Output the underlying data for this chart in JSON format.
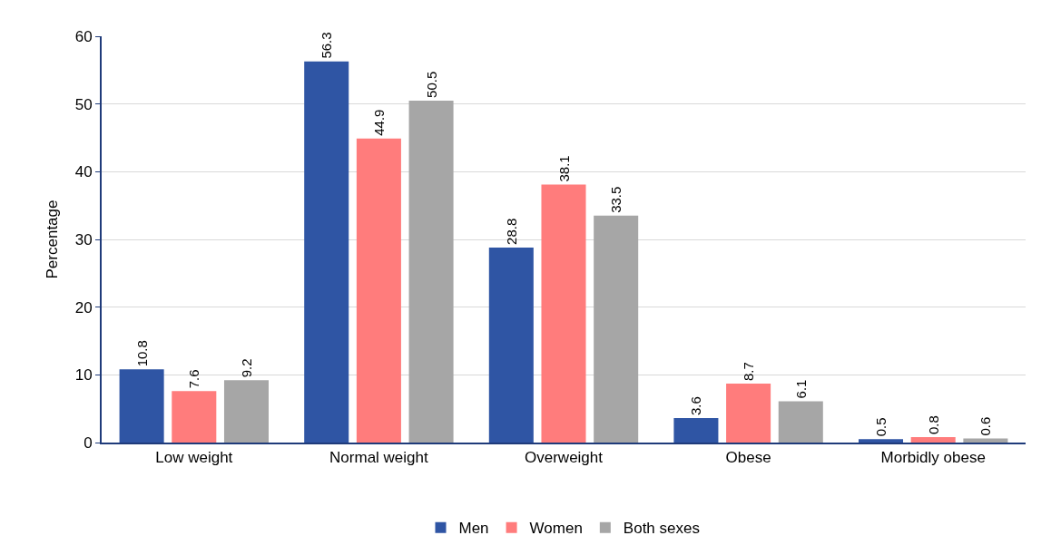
{
  "chart_data": {
    "type": "bar",
    "ylabel": "Percentage",
    "categories": [
      "Low weight",
      "Normal weight",
      "Overweight",
      "Obese",
      "Morbidly obese"
    ],
    "series": [
      {
        "name": "Men",
        "color": "#2f55a4",
        "values": [
          10.8,
          56.3,
          28.8,
          3.6,
          0.5
        ]
      },
      {
        "name": "Women",
        "color": "#ff7c7c",
        "values": [
          7.6,
          44.9,
          38.1,
          8.7,
          0.8
        ]
      },
      {
        "name": "Both sexes",
        "color": "#a6a6a6",
        "values": [
          9.2,
          50.5,
          33.5,
          6.1,
          0.6
        ]
      }
    ],
    "ylim": [
      0,
      60
    ],
    "yticks": [
      0,
      10,
      20,
      30,
      40,
      50,
      60
    ],
    "grid": "y",
    "legend": "bottom",
    "data_labels": true
  }
}
